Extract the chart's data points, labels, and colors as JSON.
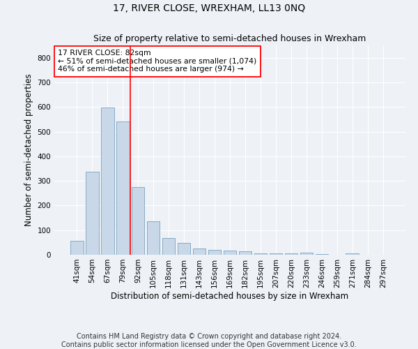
{
  "title": "17, RIVER CLOSE, WREXHAM, LL13 0NQ",
  "subtitle": "Size of property relative to semi-detached houses in Wrexham",
  "xlabel": "Distribution of semi-detached houses by size in Wrexham",
  "ylabel": "Number of semi-detached properties",
  "categories": [
    "41sqm",
    "54sqm",
    "67sqm",
    "79sqm",
    "92sqm",
    "105sqm",
    "118sqm",
    "131sqm",
    "143sqm",
    "156sqm",
    "169sqm",
    "182sqm",
    "195sqm",
    "207sqm",
    "220sqm",
    "233sqm",
    "246sqm",
    "259sqm",
    "271sqm",
    "284sqm",
    "297sqm"
  ],
  "values": [
    58,
    336,
    597,
    540,
    275,
    137,
    67,
    48,
    25,
    21,
    17,
    13,
    7,
    6,
    5,
    9,
    2,
    0,
    7,
    0,
    0
  ],
  "bar_color": "#c8d8e8",
  "bar_edge_color": "#7aa0be",
  "vline_x": 3.5,
  "vline_color": "red",
  "annotation_text": "17 RIVER CLOSE: 82sqm\n← 51% of semi-detached houses are smaller (1,074)\n46% of semi-detached houses are larger (974) →",
  "annotation_box_color": "white",
  "annotation_box_edge_color": "red",
  "ylim": [
    0,
    850
  ],
  "yticks": [
    0,
    100,
    200,
    300,
    400,
    500,
    600,
    700,
    800
  ],
  "footer": "Contains HM Land Registry data © Crown copyright and database right 2024.\nContains public sector information licensed under the Open Government Licence v3.0.",
  "bg_color": "#eef2f7",
  "grid_color": "white",
  "title_fontsize": 10,
  "subtitle_fontsize": 9,
  "axis_label_fontsize": 8.5,
  "tick_fontsize": 7.5,
  "footer_fontsize": 7
}
